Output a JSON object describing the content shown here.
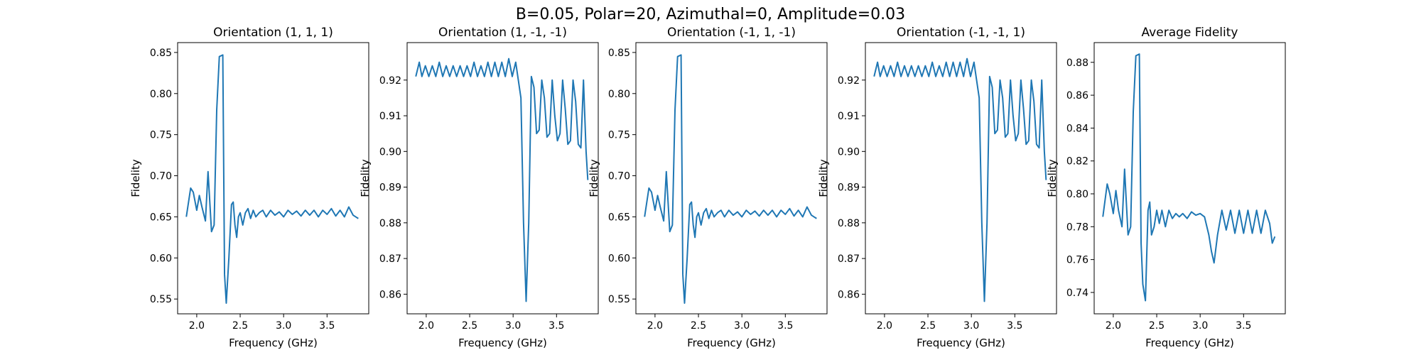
{
  "figure": {
    "suptitle": "B=0.05, Polar=20, Azimuthal=0, Amplitude=0.03"
  },
  "chart_data": [
    {
      "type": "line",
      "title": "Orientation (1, 1, 1)",
      "xlabel": "Frequency (GHz)",
      "ylabel": "Fidelity",
      "xlim": [
        1.78,
        3.98
      ],
      "ylim": [
        0.532,
        0.862
      ],
      "xticks": [
        2.0,
        2.5,
        3.0,
        3.5
      ],
      "xtick_labels": [
        "2.0",
        "2.5",
        "3.0",
        "3.5"
      ],
      "yticks": [
        0.55,
        0.6,
        0.65,
        0.7,
        0.75,
        0.8,
        0.85
      ],
      "ytick_labels": [
        "0.55",
        "0.60",
        "0.65",
        "0.70",
        "0.75",
        "0.80",
        "0.85"
      ],
      "grid": false,
      "series": [
        {
          "color": "#1f77b4",
          "x": [
            1.88,
            1.93,
            1.96,
            2.0,
            2.03,
            2.06,
            2.1,
            2.13,
            2.17,
            2.2,
            2.23,
            2.26,
            2.3,
            2.32,
            2.34,
            2.37,
            2.4,
            2.42,
            2.44,
            2.46,
            2.48,
            2.5,
            2.53,
            2.56,
            2.59,
            2.62,
            2.65,
            2.68,
            2.72,
            2.76,
            2.8,
            2.85,
            2.9,
            2.95,
            3.0,
            3.05,
            3.1,
            3.15,
            3.2,
            3.25,
            3.3,
            3.35,
            3.4,
            3.45,
            3.5,
            3.55,
            3.6,
            3.65,
            3.7,
            3.75,
            3.8,
            3.83,
            3.86
          ],
          "y": [
            0.65,
            0.685,
            0.68,
            0.658,
            0.676,
            0.662,
            0.645,
            0.705,
            0.632,
            0.64,
            0.78,
            0.845,
            0.847,
            0.58,
            0.545,
            0.6,
            0.665,
            0.668,
            0.64,
            0.625,
            0.65,
            0.655,
            0.64,
            0.655,
            0.66,
            0.648,
            0.658,
            0.65,
            0.655,
            0.658,
            0.65,
            0.658,
            0.652,
            0.656,
            0.65,
            0.658,
            0.653,
            0.657,
            0.651,
            0.658,
            0.652,
            0.658,
            0.65,
            0.658,
            0.653,
            0.66,
            0.651,
            0.658,
            0.65,
            0.662,
            0.652,
            0.65,
            0.648
          ]
        }
      ]
    },
    {
      "type": "line",
      "title": "Orientation (1, -1, -1)",
      "xlabel": "Frequency (GHz)",
      "ylabel": "Fidelity",
      "xlim": [
        1.78,
        3.98
      ],
      "ylim": [
        0.8545,
        0.9305
      ],
      "xticks": [
        2.0,
        2.5,
        3.0,
        3.5
      ],
      "xtick_labels": [
        "2.0",
        "2.5",
        "3.0",
        "3.5"
      ],
      "yticks": [
        0.86,
        0.87,
        0.88,
        0.89,
        0.9,
        0.91,
        0.92
      ],
      "ytick_labels": [
        "0.86",
        "0.87",
        "0.88",
        "0.89",
        "0.90",
        "0.91",
        "0.92"
      ],
      "grid": false,
      "series": [
        {
          "color": "#1f77b4",
          "x": [
            1.88,
            1.92,
            1.95,
            1.99,
            2.03,
            2.07,
            2.11,
            2.15,
            2.19,
            2.23,
            2.27,
            2.31,
            2.35,
            2.39,
            2.43,
            2.47,
            2.51,
            2.55,
            2.59,
            2.63,
            2.67,
            2.71,
            2.75,
            2.79,
            2.83,
            2.87,
            2.91,
            2.95,
            2.99,
            3.03,
            3.06,
            3.09,
            3.12,
            3.15,
            3.18,
            3.21,
            3.24,
            3.27,
            3.3,
            3.33,
            3.36,
            3.39,
            3.42,
            3.45,
            3.48,
            3.51,
            3.54,
            3.57,
            3.6,
            3.63,
            3.66,
            3.69,
            3.72,
            3.75,
            3.78,
            3.81,
            3.84,
            3.86
          ],
          "y": [
            0.921,
            0.925,
            0.921,
            0.924,
            0.921,
            0.924,
            0.921,
            0.925,
            0.921,
            0.924,
            0.921,
            0.924,
            0.921,
            0.924,
            0.921,
            0.924,
            0.921,
            0.925,
            0.921,
            0.924,
            0.921,
            0.925,
            0.921,
            0.925,
            0.921,
            0.925,
            0.921,
            0.926,
            0.921,
            0.925,
            0.92,
            0.915,
            0.88,
            0.858,
            0.88,
            0.921,
            0.918,
            0.905,
            0.906,
            0.92,
            0.915,
            0.904,
            0.905,
            0.92,
            0.91,
            0.903,
            0.905,
            0.92,
            0.912,
            0.902,
            0.903,
            0.92,
            0.914,
            0.902,
            0.901,
            0.92,
            0.9,
            0.892
          ]
        }
      ]
    },
    {
      "type": "line",
      "title": "Orientation (-1, 1, -1)",
      "xlabel": "Frequency (GHz)",
      "ylabel": "Fidelity",
      "xlim": [
        1.78,
        3.98
      ],
      "ylim": [
        0.532,
        0.862
      ],
      "xticks": [
        2.0,
        2.5,
        3.0,
        3.5
      ],
      "xtick_labels": [
        "2.0",
        "2.5",
        "3.0",
        "3.5"
      ],
      "yticks": [
        0.55,
        0.6,
        0.65,
        0.7,
        0.75,
        0.8,
        0.85
      ],
      "ytick_labels": [
        "0.55",
        "0.60",
        "0.65",
        "0.70",
        "0.75",
        "0.80",
        "0.85"
      ],
      "grid": false,
      "series": [
        {
          "color": "#1f77b4",
          "x": [
            1.88,
            1.93,
            1.96,
            2.0,
            2.03,
            2.06,
            2.1,
            2.13,
            2.17,
            2.2,
            2.23,
            2.26,
            2.3,
            2.32,
            2.34,
            2.37,
            2.4,
            2.42,
            2.44,
            2.46,
            2.48,
            2.5,
            2.53,
            2.56,
            2.59,
            2.62,
            2.65,
            2.68,
            2.72,
            2.76,
            2.8,
            2.85,
            2.9,
            2.95,
            3.0,
            3.05,
            3.1,
            3.15,
            3.2,
            3.25,
            3.3,
            3.35,
            3.4,
            3.45,
            3.5,
            3.55,
            3.6,
            3.65,
            3.7,
            3.75,
            3.8,
            3.83,
            3.86
          ],
          "y": [
            0.65,
            0.685,
            0.68,
            0.658,
            0.676,
            0.662,
            0.645,
            0.705,
            0.632,
            0.64,
            0.78,
            0.845,
            0.847,
            0.58,
            0.545,
            0.6,
            0.665,
            0.668,
            0.64,
            0.625,
            0.65,
            0.655,
            0.64,
            0.655,
            0.66,
            0.648,
            0.658,
            0.65,
            0.655,
            0.658,
            0.65,
            0.658,
            0.652,
            0.656,
            0.65,
            0.658,
            0.653,
            0.657,
            0.651,
            0.658,
            0.652,
            0.658,
            0.65,
            0.658,
            0.653,
            0.66,
            0.651,
            0.658,
            0.65,
            0.662,
            0.652,
            0.65,
            0.648
          ]
        }
      ]
    },
    {
      "type": "line",
      "title": "Orientation (-1, -1, 1)",
      "xlabel": "Frequency (GHz)",
      "ylabel": "Fidelity",
      "xlim": [
        1.78,
        3.98
      ],
      "ylim": [
        0.8545,
        0.9305
      ],
      "xticks": [
        2.0,
        2.5,
        3.0,
        3.5
      ],
      "xtick_labels": [
        "2.0",
        "2.5",
        "3.0",
        "3.5"
      ],
      "yticks": [
        0.86,
        0.87,
        0.88,
        0.89,
        0.9,
        0.91,
        0.92
      ],
      "ytick_labels": [
        "0.86",
        "0.87",
        "0.88",
        "0.89",
        "0.90",
        "0.91",
        "0.92"
      ],
      "grid": false,
      "series": [
        {
          "color": "#1f77b4",
          "x": [
            1.88,
            1.92,
            1.95,
            1.99,
            2.03,
            2.07,
            2.11,
            2.15,
            2.19,
            2.23,
            2.27,
            2.31,
            2.35,
            2.39,
            2.43,
            2.47,
            2.51,
            2.55,
            2.59,
            2.63,
            2.67,
            2.71,
            2.75,
            2.79,
            2.83,
            2.87,
            2.91,
            2.95,
            2.99,
            3.03,
            3.06,
            3.09,
            3.12,
            3.15,
            3.18,
            3.21,
            3.24,
            3.27,
            3.3,
            3.33,
            3.36,
            3.39,
            3.42,
            3.45,
            3.48,
            3.51,
            3.54,
            3.57,
            3.6,
            3.63,
            3.66,
            3.69,
            3.72,
            3.75,
            3.78,
            3.81,
            3.84,
            3.86
          ],
          "y": [
            0.921,
            0.925,
            0.921,
            0.924,
            0.921,
            0.924,
            0.921,
            0.925,
            0.921,
            0.924,
            0.921,
            0.924,
            0.921,
            0.924,
            0.921,
            0.924,
            0.921,
            0.925,
            0.921,
            0.924,
            0.921,
            0.925,
            0.921,
            0.925,
            0.921,
            0.925,
            0.921,
            0.926,
            0.921,
            0.925,
            0.92,
            0.915,
            0.88,
            0.858,
            0.88,
            0.921,
            0.918,
            0.905,
            0.906,
            0.92,
            0.915,
            0.904,
            0.905,
            0.92,
            0.91,
            0.903,
            0.905,
            0.92,
            0.912,
            0.902,
            0.903,
            0.92,
            0.914,
            0.902,
            0.901,
            0.92,
            0.9,
            0.892
          ]
        }
      ]
    },
    {
      "type": "line",
      "title": "Average Fidelity",
      "xlabel": "Frequency (GHz)",
      "ylabel": "Fidelity",
      "xlim": [
        1.78,
        3.98
      ],
      "ylim": [
        0.727,
        0.892
      ],
      "xticks": [
        2.0,
        2.5,
        3.0,
        3.5
      ],
      "xtick_labels": [
        "2.0",
        "2.5",
        "3.0",
        "3.5"
      ],
      "yticks": [
        0.74,
        0.76,
        0.78,
        0.8,
        0.82,
        0.84,
        0.86,
        0.88
      ],
      "ytick_labels": [
        "0.74",
        "0.76",
        "0.78",
        "0.80",
        "0.82",
        "0.84",
        "0.86",
        "0.88"
      ],
      "grid": false,
      "series": [
        {
          "color": "#1f77b4",
          "x": [
            1.88,
            1.93,
            1.96,
            2.0,
            2.03,
            2.06,
            2.1,
            2.13,
            2.17,
            2.2,
            2.23,
            2.26,
            2.3,
            2.32,
            2.34,
            2.37,
            2.4,
            2.42,
            2.44,
            2.47,
            2.5,
            2.53,
            2.56,
            2.6,
            2.64,
            2.68,
            2.72,
            2.76,
            2.8,
            2.85,
            2.9,
            2.95,
            3.0,
            3.05,
            3.1,
            3.13,
            3.16,
            3.2,
            3.25,
            3.3,
            3.35,
            3.4,
            3.45,
            3.5,
            3.55,
            3.6,
            3.65,
            3.7,
            3.75,
            3.8,
            3.83,
            3.86
          ],
          "y": [
            0.786,
            0.806,
            0.8,
            0.788,
            0.802,
            0.79,
            0.78,
            0.815,
            0.775,
            0.78,
            0.85,
            0.884,
            0.885,
            0.77,
            0.745,
            0.735,
            0.79,
            0.795,
            0.775,
            0.78,
            0.79,
            0.782,
            0.79,
            0.78,
            0.79,
            0.785,
            0.788,
            0.786,
            0.788,
            0.785,
            0.789,
            0.787,
            0.788,
            0.786,
            0.775,
            0.765,
            0.758,
            0.775,
            0.79,
            0.778,
            0.79,
            0.776,
            0.79,
            0.776,
            0.79,
            0.776,
            0.79,
            0.776,
            0.79,
            0.782,
            0.77,
            0.774
          ]
        }
      ]
    }
  ]
}
